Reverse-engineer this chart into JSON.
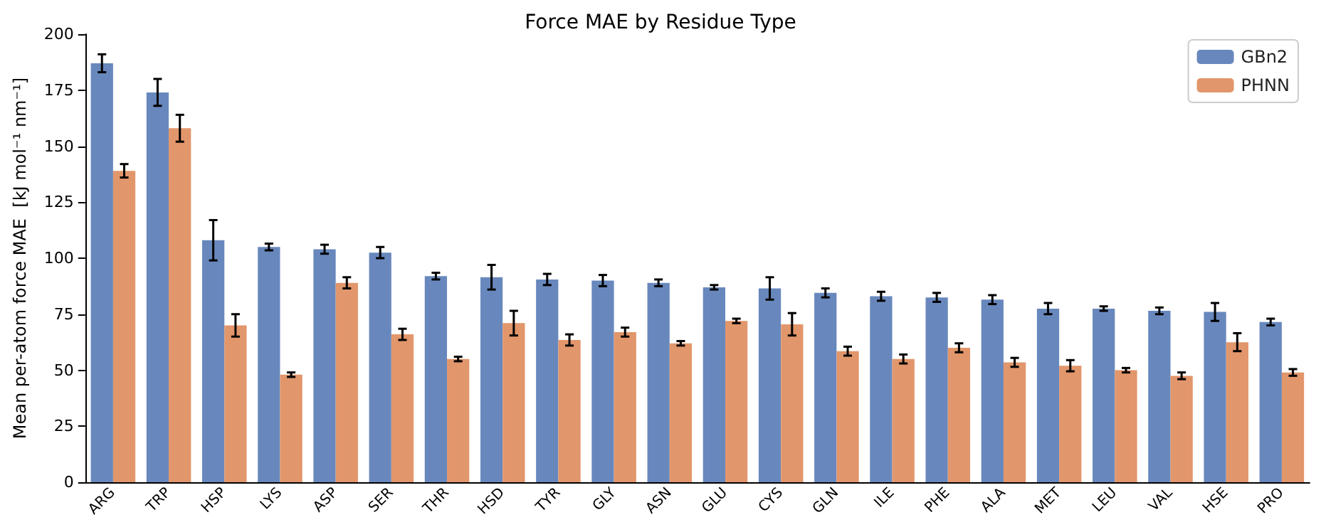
{
  "chart_data": {
    "type": "bar",
    "title": "Force MAE by Residue Type",
    "ylabel": "Mean per-atom force MAE  [kJ mol⁻¹ nm⁻¹]",
    "categories": [
      "ARG",
      "TRP",
      "HSP",
      "LYS",
      "ASP",
      "SER",
      "THR",
      "HSD",
      "TYR",
      "GLY",
      "ASN",
      "GLU",
      "CYS",
      "GLN",
      "ILE",
      "PHE",
      "ALA",
      "MET",
      "LEU",
      "VAL",
      "HSE",
      "PRO"
    ],
    "series": [
      {
        "name": "GBn2",
        "color": "#6888bd",
        "values": [
          187,
          174,
          108,
          105,
          104,
          102.5,
          92,
          91.5,
          90.5,
          90,
          89,
          87,
          86.5,
          84.5,
          83,
          82.5,
          81.5,
          77.5,
          77.5,
          76.5,
          76,
          71.5
        ],
        "errors": [
          4,
          6,
          9,
          1.5,
          2,
          2.5,
          1.5,
          5.5,
          2.5,
          2.5,
          1.5,
          1,
          5,
          2,
          2,
          2,
          2,
          2.5,
          1,
          1.5,
          4,
          1.5
        ]
      },
      {
        "name": "PHNN",
        "color": "#e2966b",
        "values": [
          139,
          158,
          70,
          48,
          89,
          66,
          55,
          71,
          63.5,
          67,
          62,
          72,
          70.5,
          58.5,
          55,
          60,
          53.5,
          52,
          50,
          47.5,
          62.5,
          49
        ],
        "errors": [
          3,
          6,
          5,
          1,
          2.5,
          2.5,
          1,
          5.5,
          2.5,
          2,
          1,
          1,
          5,
          2,
          2,
          2,
          2,
          2.5,
          1,
          1.5,
          4,
          1.5
        ]
      }
    ],
    "ylim": [
      0,
      200
    ],
    "yticks": [
      0,
      25,
      50,
      75,
      100,
      125,
      150,
      175,
      200
    ],
    "grid": false,
    "legend": "top right"
  }
}
